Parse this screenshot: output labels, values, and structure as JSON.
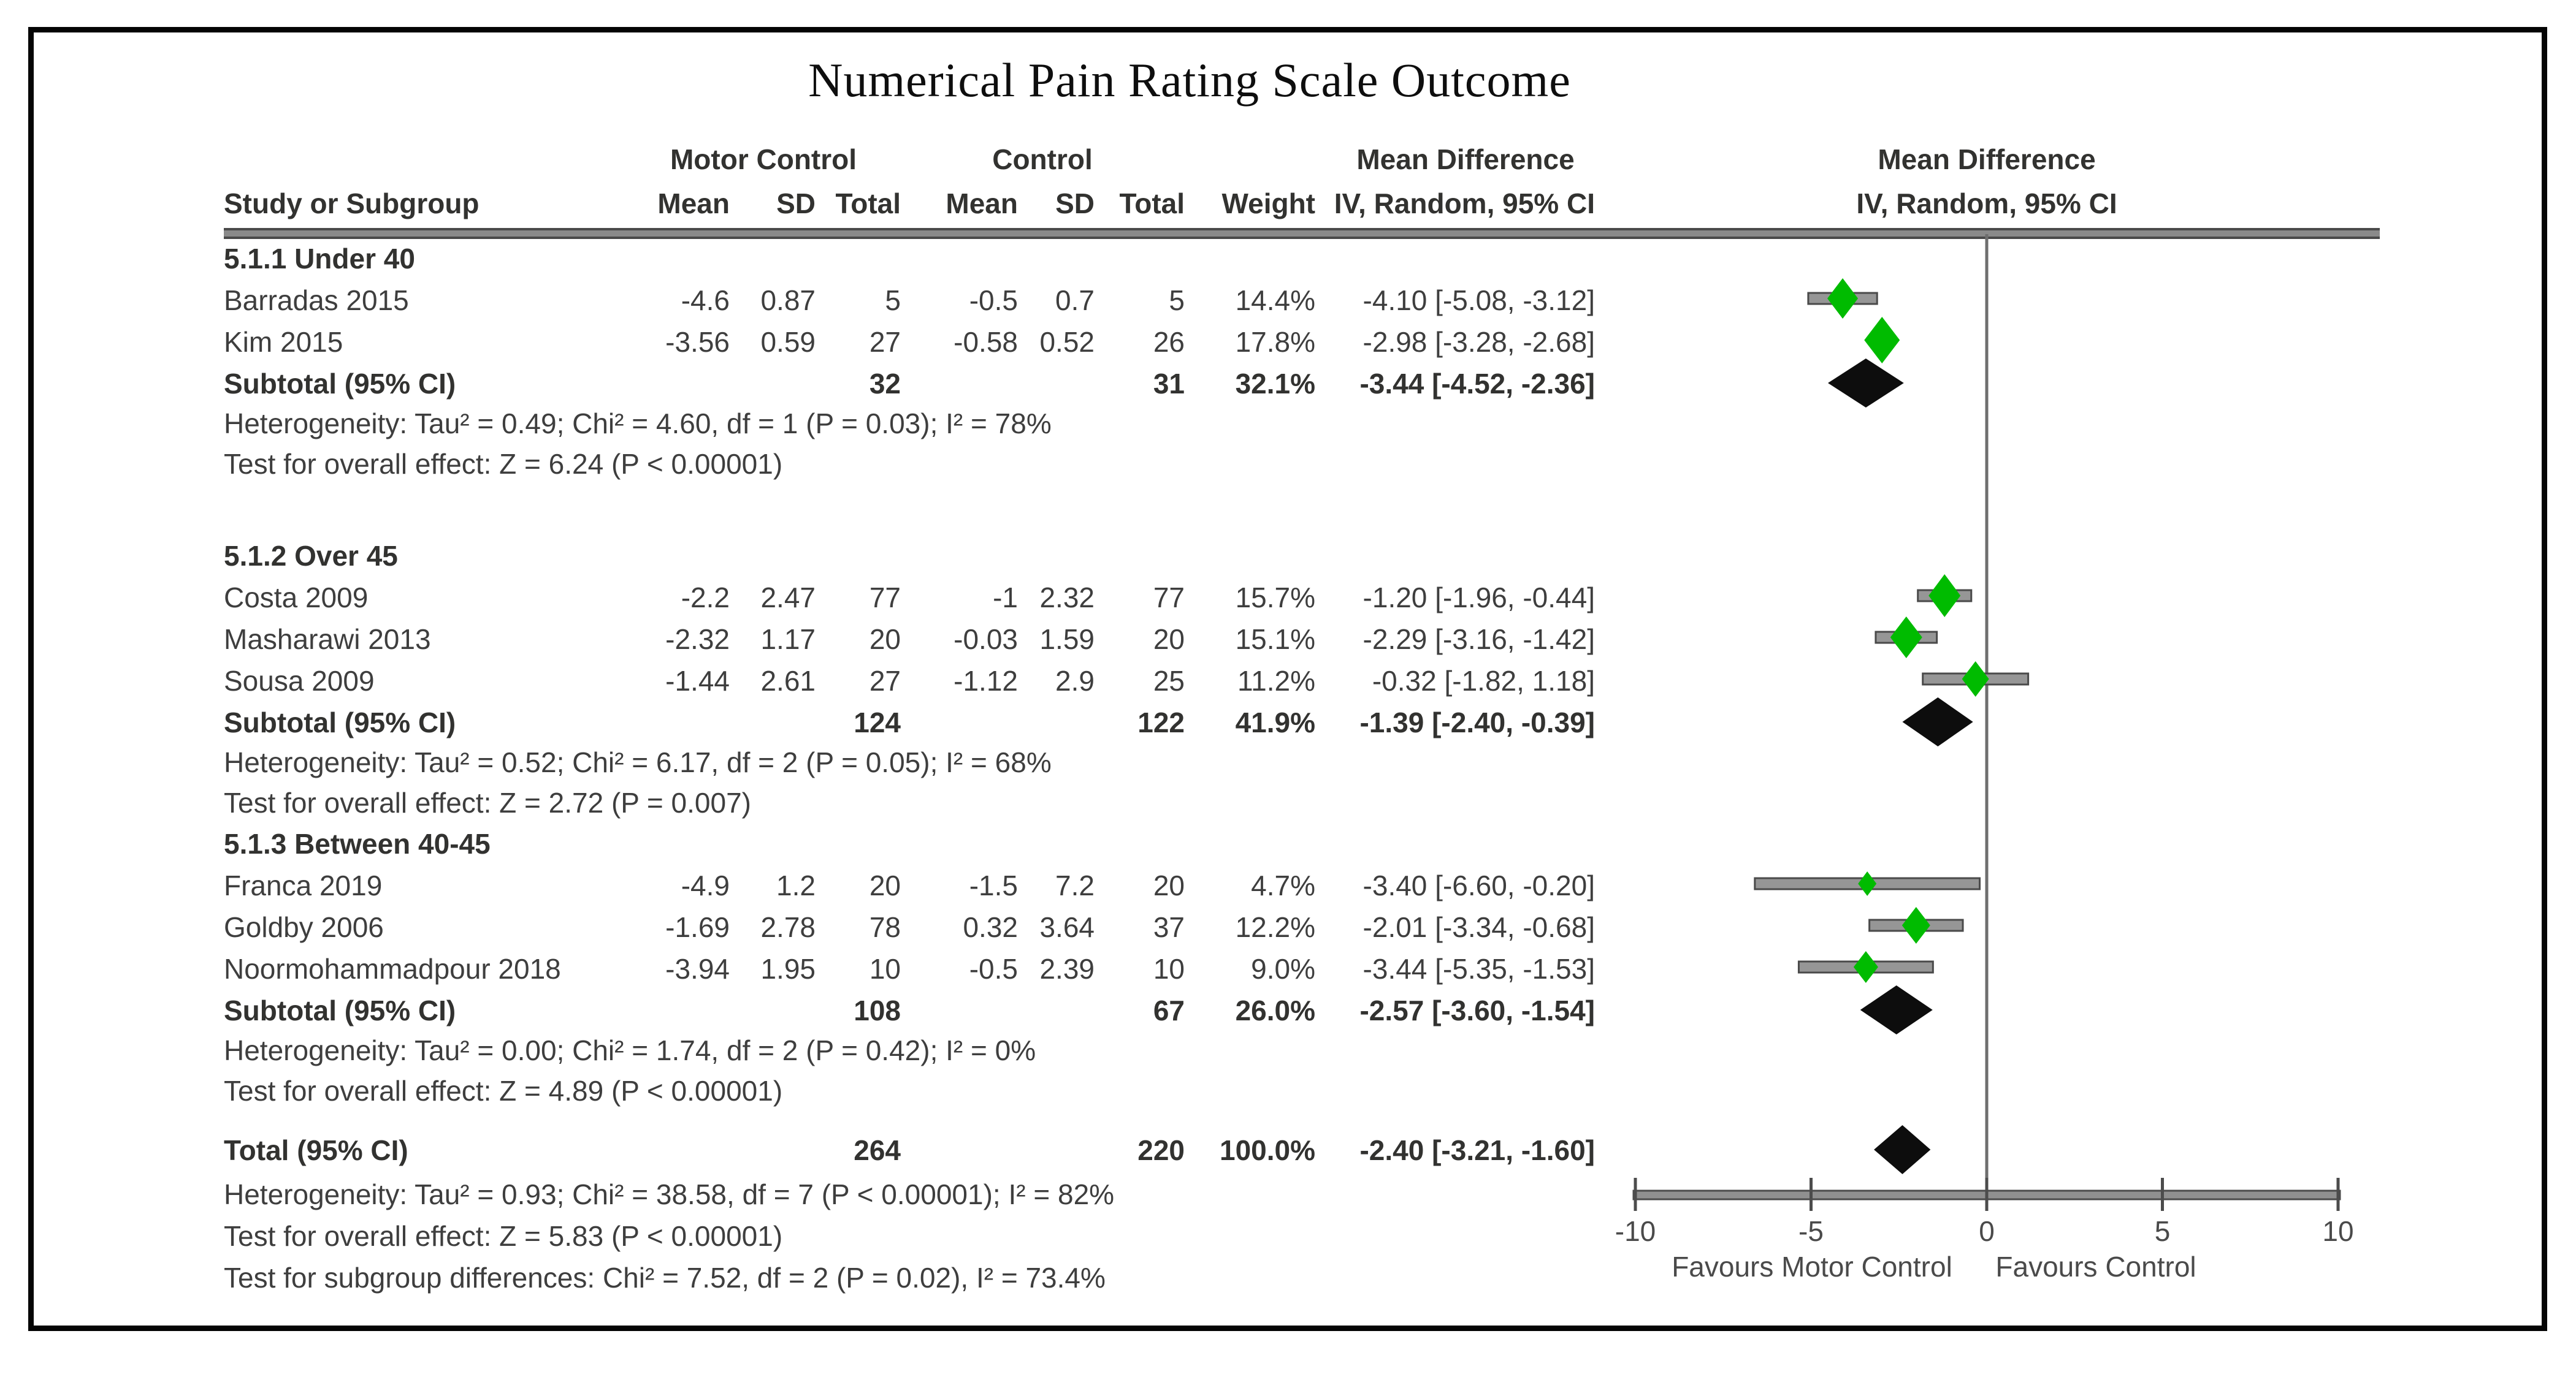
{
  "title": "Numerical Pain Rating Scale Outcome",
  "header": {
    "group1": "Motor Control",
    "group2": "Control",
    "effect": "Mean Difference",
    "study": "Study or Subgroup",
    "mean": "Mean",
    "sd": "SD",
    "total": "Total",
    "weight": "Weight",
    "iv": "IV, Random, 95% CI"
  },
  "chart_data": {
    "type": "forest",
    "title": "Numerical Pain Rating Scale Outcome",
    "effect_label": "Mean Difference",
    "method_label": "IV, Random, 95% CI",
    "xlim": [
      -10,
      10
    ],
    "x_ticks": [
      -10,
      -5,
      0,
      5,
      10
    ],
    "x_tick_labels": [
      "-10",
      "-5",
      "0",
      "5",
      "10"
    ],
    "favours_left": "Favours Motor Control",
    "favours_right": "Favours Control",
    "marker_color": "#00bb00",
    "ci_color": "#969696",
    "diamond_color": "#0d0d0d",
    "groups": [
      {
        "label": "5.1.1 Under 40",
        "studies": [
          {
            "name": "Barradas 2015",
            "mc_mean": "-4.6",
            "mc_sd": "0.87",
            "mc_total": "5",
            "c_mean": "-0.5",
            "c_sd": "0.7",
            "c_total": "5",
            "weight": "14.4%",
            "weight_pct": 14.4,
            "ci_text": "-4.10 [-5.08, -3.12]",
            "est": -4.1,
            "lo": -5.08,
            "hi": -3.12
          },
          {
            "name": "Kim 2015",
            "mc_mean": "-3.56",
            "mc_sd": "0.59",
            "mc_total": "27",
            "c_mean": "-0.58",
            "c_sd": "0.52",
            "c_total": "26",
            "weight": "17.8%",
            "weight_pct": 17.8,
            "ci_text": "-2.98 [-3.28, -2.68]",
            "est": -2.98,
            "lo": -3.28,
            "hi": -2.68
          }
        ],
        "subtotal": {
          "label": "Subtotal (95% CI)",
          "mc_total": "32",
          "c_total": "31",
          "weight": "32.1%",
          "ci_text": "-3.44 [-4.52, -2.36]",
          "est": -3.44,
          "lo": -4.52,
          "hi": -2.36
        },
        "heterogeneity": "Heterogeneity: Tau² = 0.49; Chi² = 4.60, df = 1 (P = 0.03); I² = 78%",
        "overall_effect": "Test for overall effect: Z = 6.24 (P < 0.00001)"
      },
      {
        "label": "5.1.2 Over 45",
        "studies": [
          {
            "name": "Costa 2009",
            "mc_mean": "-2.2",
            "mc_sd": "2.47",
            "mc_total": "77",
            "c_mean": "-1",
            "c_sd": "2.32",
            "c_total": "77",
            "weight": "15.7%",
            "weight_pct": 15.7,
            "ci_text": "-1.20 [-1.96, -0.44]",
            "est": -1.2,
            "lo": -1.96,
            "hi": -0.44
          },
          {
            "name": "Masharawi 2013",
            "mc_mean": "-2.32",
            "mc_sd": "1.17",
            "mc_total": "20",
            "c_mean": "-0.03",
            "c_sd": "1.59",
            "c_total": "20",
            "weight": "15.1%",
            "weight_pct": 15.1,
            "ci_text": "-2.29 [-3.16, -1.42]",
            "est": -2.29,
            "lo": -3.16,
            "hi": -1.42
          },
          {
            "name": "Sousa 2009",
            "mc_mean": "-1.44",
            "mc_sd": "2.61",
            "mc_total": "27",
            "c_mean": "-1.12",
            "c_sd": "2.9",
            "c_total": "25",
            "weight": "11.2%",
            "weight_pct": 11.2,
            "ci_text": "-0.32 [-1.82, 1.18]",
            "est": -0.32,
            "lo": -1.82,
            "hi": 1.18
          }
        ],
        "subtotal": {
          "label": "Subtotal (95% CI)",
          "mc_total": "124",
          "c_total": "122",
          "weight": "41.9%",
          "ci_text": "-1.39 [-2.40, -0.39]",
          "est": -1.39,
          "lo": -2.4,
          "hi": -0.39
        },
        "heterogeneity": "Heterogeneity: Tau² = 0.52; Chi² = 6.17, df = 2 (P = 0.05); I² = 68%",
        "overall_effect": "Test for overall effect: Z = 2.72 (P = 0.007)"
      },
      {
        "label": "5.1.3 Between 40-45",
        "studies": [
          {
            "name": "Franca 2019",
            "mc_mean": "-4.9",
            "mc_sd": "1.2",
            "mc_total": "20",
            "c_mean": "-1.5",
            "c_sd": "7.2",
            "c_total": "20",
            "weight": "4.7%",
            "weight_pct": 4.7,
            "ci_text": "-3.40 [-6.60, -0.20]",
            "est": -3.4,
            "lo": -6.6,
            "hi": -0.2
          },
          {
            "name": "Goldby 2006",
            "mc_mean": "-1.69",
            "mc_sd": "2.78",
            "mc_total": "78",
            "c_mean": "0.32",
            "c_sd": "3.64",
            "c_total": "37",
            "weight": "12.2%",
            "weight_pct": 12.2,
            "ci_text": "-2.01 [-3.34, -0.68]",
            "est": -2.01,
            "lo": -3.34,
            "hi": -0.68
          },
          {
            "name": "Noormohammadpour 2018",
            "mc_mean": "-3.94",
            "mc_sd": "1.95",
            "mc_total": "10",
            "c_mean": "-0.5",
            "c_sd": "2.39",
            "c_total": "10",
            "weight": "9.0%",
            "weight_pct": 9.0,
            "ci_text": "-3.44 [-5.35, -1.53]",
            "est": -3.44,
            "lo": -5.35,
            "hi": -1.53
          }
        ],
        "subtotal": {
          "label": "Subtotal (95% CI)",
          "mc_total": "108",
          "c_total": "67",
          "weight": "26.0%",
          "ci_text": "-2.57 [-3.60, -1.54]",
          "est": -2.57,
          "lo": -3.6,
          "hi": -1.54
        },
        "heterogeneity": "Heterogeneity: Tau² = 0.00; Chi² = 1.74, df = 2 (P = 0.42); I² = 0%",
        "overall_effect": "Test for overall effect: Z = 4.89 (P < 0.00001)"
      }
    ],
    "total": {
      "label": "Total (95% CI)",
      "mc_total": "264",
      "c_total": "220",
      "weight": "100.0%",
      "ci_text": "-2.40 [-3.21, -1.60]",
      "est": -2.4,
      "lo": -3.21,
      "hi": -1.6,
      "heterogeneity": "Heterogeneity: Tau² = 0.93; Chi² = 38.58, df = 7 (P < 0.00001); I² = 82%",
      "overall_effect": "Test for overall effect: Z = 5.83 (P < 0.00001)",
      "subgroup_differences": "Test for subgroup differences: Chi² = 7.52, df = 2 (P = 0.02), I² = 73.4%"
    }
  }
}
